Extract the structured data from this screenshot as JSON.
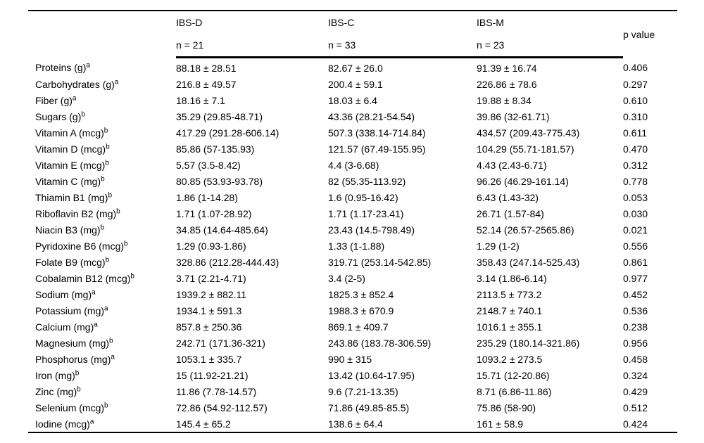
{
  "table": {
    "group_columns": [
      {
        "label": "IBS-D",
        "n": "n = 21"
      },
      {
        "label": "IBS-C",
        "n": "n = 33"
      },
      {
        "label": "IBS-M",
        "n": "n = 23"
      }
    ],
    "p_value_header": "p value",
    "rows": [
      {
        "label": "Proteins (g)",
        "sup": "a",
        "ibs_d": "88.18 ± 28.51",
        "ibs_c": "82.67 ± 26.0",
        "ibs_m": "91.39 ± 16.74",
        "p": "0.406"
      },
      {
        "label": "Carbohydrates (g)",
        "sup": "a",
        "ibs_d": "216.8 ± 49.57",
        "ibs_c": "200.4 ± 59.1",
        "ibs_m": "226.86 ± 78.6",
        "p": "0.297"
      },
      {
        "label": "Fiber (g)",
        "sup": "a",
        "ibs_d": "18.16 ± 7.1",
        "ibs_c": "18.03 ± 6.4",
        "ibs_m": "19.88 ± 8.34",
        "p": "0.610"
      },
      {
        "label": "Sugars (g)",
        "sup": "b",
        "ibs_d": "35.29 (29.85-48.71)",
        "ibs_c": "43.36 (28.21-54.54)",
        "ibs_m": "39.86 (32-61.71)",
        "p": "0.310"
      },
      {
        "label": "Vitamin A (mcg)",
        "sup": "b",
        "ibs_d": "417.29 (291.28-606.14)",
        "ibs_c": "507.3 (338.14-714.84)",
        "ibs_m": "434.57 (209.43-775.43)",
        "p": "0.611"
      },
      {
        "label": "Vitamin D (mcg)",
        "sup": "b",
        "ibs_d": "85.86 (57-135.93)",
        "ibs_c": "121.57 (67.49-155.95)",
        "ibs_m": "104.29 (55.71-181.57)",
        "p": "0.470"
      },
      {
        "label": "Vitamin E (mcg)",
        "sup": "b",
        "ibs_d": "5.57 (3.5-8.42)",
        "ibs_c": "4.4 (3-6.68)",
        "ibs_m": "4.43 (2.43-6.71)",
        "p": "0.312"
      },
      {
        "label": "Vitamin C (mg)",
        "sup": "b",
        "ibs_d": "80.85 (53.93-93.78)",
        "ibs_c": "82 (55.35-113.92)",
        "ibs_m": "96.26 (46.29-161.14)",
        "p": "0.778"
      },
      {
        "label": "Thiamin B1 (mg)",
        "sup": "b",
        "ibs_d": "1.86 (1-14.28)",
        "ibs_c": "1.6 (0.95-16.42)",
        "ibs_m": "6.43 (1.43-32)",
        "p": "0.053"
      },
      {
        "label": "Riboflavin B2 (mg)",
        "sup": "b",
        "ibs_d": "1.71 (1.07-28.92)",
        "ibs_c": "1.71 (1.17-23.41)",
        "ibs_m": "26.71 (1.57-84)",
        "p": "0.030"
      },
      {
        "label": "Niacin B3 (mg)",
        "sup": "b",
        "ibs_d": "34.85 (14.64-485.64)",
        "ibs_c": "23.43 (14.5-798.49)",
        "ibs_m": "52.14 (26.57-2565.86)",
        "p": "0.021"
      },
      {
        "label": "Pyridoxine B6 (mcg)",
        "sup": "b",
        "ibs_d": "1.29 (0.93-1.86)",
        "ibs_c": "1.33 (1-1.88)",
        "ibs_m": "1.29 (1-2)",
        "p": "0.556"
      },
      {
        "label": "Folate B9 (mcg)",
        "sup": "b",
        "ibs_d": "328.86 (212.28-444.43)",
        "ibs_c": "319.71 (253.14-542.85)",
        "ibs_m": "358.43 (247.14-525.43)",
        "p": "0.861"
      },
      {
        "label": "Cobalamin B12 (mcg)",
        "sup": "b",
        "ibs_d": "3.71 (2.21-4.71)",
        "ibs_c": "3.4 (2-5)",
        "ibs_m": "3.14 (1.86-6.14)",
        "p": "0.977"
      },
      {
        "label": "Sodium (mg)",
        "sup": "a",
        "ibs_d": "1939.2 ± 882.11",
        "ibs_c": "1825.3 ± 852.4",
        "ibs_m": "2113.5 ± 773.2",
        "p": "0.452"
      },
      {
        "label": "Potassium (mg)",
        "sup": "a",
        "ibs_d": "1934.1 ± 591.3",
        "ibs_c": "1988.3 ± 670.9",
        "ibs_m": "2148.7 ± 740.1",
        "p": "0.536"
      },
      {
        "label": "Calcium (mg)",
        "sup": "a",
        "ibs_d": "857.8 ± 250.36",
        "ibs_c": "869.1 ± 409.7",
        "ibs_m": "1016.1 ± 355.1",
        "p": "0.238"
      },
      {
        "label": "Magnesium (mg)",
        "sup": "b",
        "ibs_d": "242.71 (171.36-321)",
        "ibs_c": "243.86 (183.78-306.59)",
        "ibs_m": "235.29 (180.14-321.86)",
        "p": "0.956"
      },
      {
        "label": "Phosphorus (mg)",
        "sup": "a",
        "ibs_d": "1053.1 ± 335.7",
        "ibs_c": "990 ± 315",
        "ibs_m": "1093.2 ± 273.5",
        "p": "0.458"
      },
      {
        "label": "Iron (mg)",
        "sup": "b",
        "ibs_d": "15 (11.92-21.21)",
        "ibs_c": "13.42 (10.64-17.95)",
        "ibs_m": "15.71 (12-20.86)",
        "p": "0.324"
      },
      {
        "label": "Zinc (mg)",
        "sup": "b",
        "ibs_d": "11.86 (7.78-14.57)",
        "ibs_c": "9.6 (7.21-13.35)",
        "ibs_m": "8.71 (6.86-11.86)",
        "p": "0.429"
      },
      {
        "label": "Selenium (mcg)",
        "sup": "b",
        "ibs_d": "72.86 (54.92-112.57)",
        "ibs_c": "71.86 (49.85-85.5)",
        "ibs_m": "75.86 (58-90)",
        "p": "0.512"
      },
      {
        "label": "Iodine (mcg)",
        "sup": "a",
        "ibs_d": "145.4 ± 65.2",
        "ibs_c": "138.6 ± 64.4",
        "ibs_m": "161 ± 58.9",
        "p": "0.424"
      }
    ]
  }
}
